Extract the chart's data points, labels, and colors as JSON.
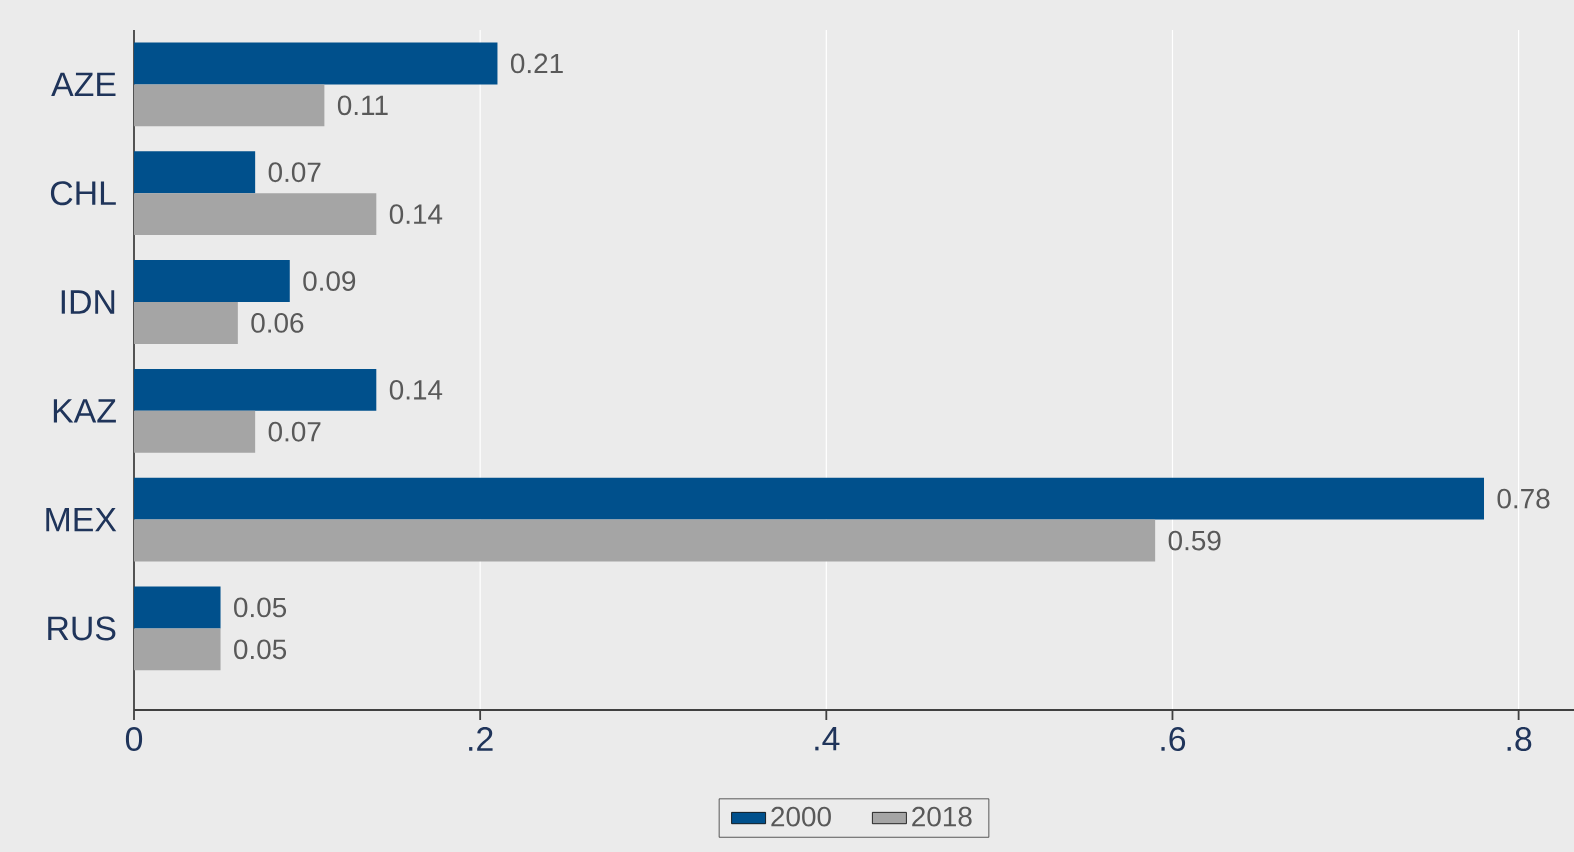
{
  "chart_data": {
    "type": "bar",
    "orientation": "horizontal",
    "categories": [
      "AZE",
      "CHL",
      "IDN",
      "KAZ",
      "MEX",
      "RUS"
    ],
    "series": [
      {
        "name": "2000",
        "color": "#00508c",
        "values": [
          0.21,
          0.07,
          0.09,
          0.14,
          0.78,
          0.05
        ],
        "value_labels": [
          "0.21",
          "0.07",
          "0.09",
          "0.14",
          "0.78",
          "0.05"
        ]
      },
      {
        "name": "2018",
        "color": "#a5a5a5",
        "values": [
          0.11,
          0.14,
          0.06,
          0.07,
          0.59,
          0.05
        ],
        "value_labels": [
          "0.11",
          "0.14",
          "0.06",
          "0.07",
          "0.59",
          "0.05"
        ]
      }
    ],
    "xlim": [
      0,
      0.832
    ],
    "xticks": [
      0,
      {
        "value": 0.2,
        "label": ".2"
      },
      {
        "value": 0.4,
        "label": ".4"
      },
      {
        "value": 0.6,
        "label": ".6"
      },
      {
        "value": 0.8,
        "label": ".8"
      }
    ],
    "grid": "x",
    "legend": "bottom"
  }
}
